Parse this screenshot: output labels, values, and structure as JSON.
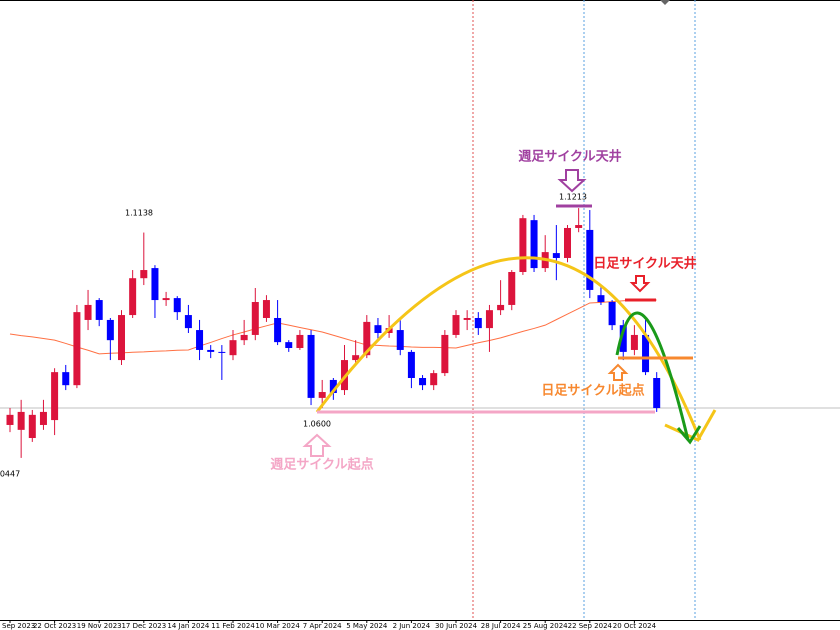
{
  "chart_data": {
    "type": "candlestick",
    "categories": [
      "Sep 2023",
      null,
      null,
      null,
      "22 Oct 2023",
      null,
      null,
      null,
      "19 Nov 2023",
      null,
      null,
      null,
      "17 Dec 2023",
      null,
      null,
      null,
      "14 Jan 2024",
      null,
      null,
      null,
      "11 Feb 2024",
      null,
      null,
      null,
      "10 Mar 2024",
      null,
      null,
      null,
      "7 Apr 2024",
      null,
      null,
      null,
      "5 May 2024",
      null,
      null,
      null,
      "2 Jun 2024",
      null,
      null,
      null,
      "30 Jun 2024",
      null,
      null,
      null,
      "28 Jul 2024",
      null,
      null,
      null,
      "25 Aug 2024",
      null,
      null,
      null,
      "22 Sep 2024",
      null,
      null,
      null,
      "20 Oct 2024",
      null,
      null
    ],
    "open": [
      1.0548,
      1.0533,
      1.0508,
      1.0548,
      1.0563,
      1.071,
      1.067,
      1.087,
      1.0931,
      1.087,
      1.0747,
      1.0885,
      1.0998,
      1.1029,
      1.0931,
      1.0937,
      1.0885,
      1.0839,
      1.0778,
      1.0772,
      1.0762,
      1.0808,
      1.0824,
      1.0876,
      1.0876,
      1.0802,
      1.0784,
      1.0824,
      1.0631,
      1.0686,
      1.0655,
      1.0747,
      1.0762,
      1.0854,
      1.083,
      1.0839,
      1.0772,
      1.0692,
      1.067,
      1.0707,
      1.0824,
      1.087,
      1.0876,
      1.0845,
      1.09,
      1.0916,
      1.1017,
      1.1176,
      1.1029,
      1.1075,
      1.106,
      1.1152,
      1.1146,
      1.0946,
      1.0925,
      1.0854,
      1.0778,
      1.0824,
      1.0692
    ],
    "high": [
      1.06,
      1.0625,
      1.0594,
      1.0625,
      1.0722,
      1.0732,
      1.0916,
      1.0962,
      1.0937,
      1.0876,
      1.09,
      1.1023,
      1.1138,
      1.1038,
      1.0956,
      1.0943,
      1.0916,
      1.087,
      1.0793,
      1.0793,
      1.0839,
      1.087,
      1.0968,
      1.0946,
      1.0931,
      1.0808,
      1.0839,
      1.0839,
      1.0686,
      1.0692,
      1.0793,
      1.0808,
      1.0885,
      1.0876,
      1.0885,
      1.087,
      1.0778,
      1.0701,
      1.0716,
      1.0839,
      1.09,
      1.09,
      1.0894,
      1.0916,
      1.0992,
      1.1023,
      1.1192,
      1.1192,
      1.113,
      1.1161,
      1.1161,
      1.1213,
      1.1207,
      1.0977,
      1.0931,
      1.087,
      1.0854,
      1.087,
      1.071
    ],
    "low": [
      1.0526,
      1.0447,
      1.0496,
      1.0533,
      1.0517,
      1.0655,
      1.0661,
      1.0839,
      1.0851,
      1.0747,
      1.0732,
      1.0876,
      1.0977,
      1.0876,
      1.0913,
      1.087,
      1.083,
      1.0747,
      1.0753,
      1.0686,
      1.0747,
      1.0793,
      1.0808,
      1.0864,
      1.0793,
      1.0772,
      1.0778,
      1.0609,
      1.06,
      1.0625,
      1.064,
      1.0732,
      1.0753,
      1.0808,
      1.0815,
      1.0762,
      1.0661,
      1.0655,
      1.0655,
      1.0698,
      1.0815,
      1.0839,
      1.0824,
      1.0772,
      1.0885,
      1.09,
      1.1008,
      1.1017,
      1.1017,
      1.0992,
      1.1047,
      1.1139,
      1.0937,
      1.0916,
      1.0839,
      1.0747,
      1.0762,
      1.0701,
      1.0588
    ],
    "close": [
      1.0579,
      1.0588,
      1.0579,
      1.0588,
      1.071,
      1.067,
      1.0894,
      1.0916,
      1.087,
      1.0808,
      1.0885,
      1.0998,
      1.1023,
      1.0931,
      1.0937,
      1.0894,
      1.0845,
      1.0778,
      1.0772,
      1.0769,
      1.0808,
      1.0824,
      1.0925,
      1.0931,
      1.0802,
      1.0784,
      1.0824,
      1.0631,
      1.0649,
      1.0646,
      1.0747,
      1.0762,
      1.0864,
      1.083,
      1.0845,
      1.0778,
      1.0692,
      1.067,
      1.0707,
      1.0824,
      1.0885,
      1.0876,
      1.0845,
      1.09,
      1.0916,
      1.1017,
      1.1182,
      1.1029,
      1.1078,
      1.106,
      1.1152,
      1.1161,
      1.0962,
      1.0925,
      1.0854,
      1.0772,
      1.0824,
      1.071,
      1.06
    ],
    "up_color": "#dc143c",
    "down_color": "#0000ff",
    "ma": {
      "color": "#ff7043",
      "values": [
        1.0827,
        1.0822,
        1.0818,
        1.0813,
        1.0808,
        1.0798,
        1.0787,
        1.0777,
        1.0766,
        1.0768,
        1.0769,
        1.0771,
        1.0772,
        1.0774,
        1.0775,
        1.0777,
        1.0778,
        1.079,
        1.0801,
        1.0813,
        1.0824,
        1.0833,
        1.0843,
        1.0852,
        1.0861,
        1.0854,
        1.0847,
        1.084,
        1.0833,
        1.0823,
        1.0813,
        1.0803,
        1.0793,
        1.0792,
        1.079,
        1.0789,
        1.0787,
        1.0786,
        1.0786,
        1.0785,
        1.0784,
        1.0792,
        1.08,
        1.0807,
        1.0815,
        1.0825,
        1.0835,
        1.0844,
        1.0854,
        1.0871,
        1.0888,
        1.0905,
        1.0922,
        1.0924,
        1.0926,
        1.0929,
        1.0931,
        1.0931,
        1.0931
      ]
    },
    "ylim": [
      0.995,
      1.1851
    ],
    "annotations": [
      {
        "text": "週足サイクル天井",
        "color": "#a040a0"
      },
      {
        "text": "日足サイクル天井",
        "color": "#e8202a"
      },
      {
        "text": "日足サイクル起点",
        "color": "#f7882f"
      },
      {
        "text": "週足サイクル起点",
        "color": "#f4a6c6"
      },
      {
        "text": "1.1213",
        "color": "#000000"
      },
      {
        "text": "1.1138",
        "color": "#000000"
      },
      {
        "text": "1.0600",
        "color": "#000000"
      },
      {
        "text": "0447",
        "color": "#000000"
      }
    ]
  }
}
